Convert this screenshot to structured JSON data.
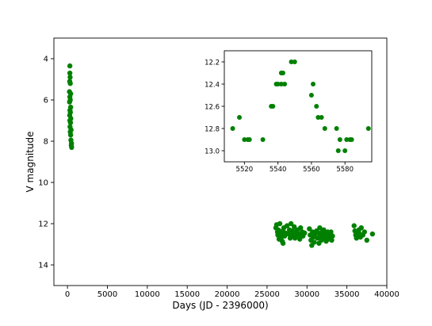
{
  "chart_data": [
    {
      "type": "scatter",
      "name": "main",
      "xlabel": "Days (JD - 2396000)",
      "ylabel": "V magnitude",
      "xlim": [
        -1700,
        40000
      ],
      "ylim": [
        15,
        3
      ],
      "y_inverted": true,
      "xticks": [
        0,
        5000,
        10000,
        15000,
        20000,
        25000,
        30000,
        35000,
        40000
      ],
      "yticks": [
        4,
        6,
        8,
        10,
        12,
        14
      ],
      "color": "#008000",
      "points": [
        [
          300,
          4.35
        ],
        [
          300,
          4.7
        ],
        [
          330,
          4.9
        ],
        [
          280,
          5.1
        ],
        [
          350,
          5.2
        ],
        [
          250,
          5.6
        ],
        [
          400,
          5.7
        ],
        [
          300,
          5.85
        ],
        [
          350,
          6.0
        ],
        [
          260,
          6.1
        ],
        [
          400,
          6.35
        ],
        [
          310,
          6.5
        ],
        [
          360,
          6.6
        ],
        [
          280,
          6.75
        ],
        [
          420,
          6.9
        ],
        [
          300,
          7.0
        ],
        [
          380,
          7.1
        ],
        [
          320,
          7.3
        ],
        [
          450,
          7.45
        ],
        [
          350,
          7.55
        ],
        [
          400,
          7.7
        ],
        [
          430,
          7.95
        ],
        [
          500,
          8.1
        ],
        [
          480,
          8.2
        ],
        [
          520,
          8.3
        ],
        [
          26100,
          12.2
        ],
        [
          26200,
          12.05
        ],
        [
          26300,
          12.4
        ],
        [
          26350,
          12.55
        ],
        [
          26400,
          12.3
        ],
        [
          26500,
          12.75
        ],
        [
          26600,
          12.0
        ],
        [
          26700,
          12.5
        ],
        [
          26800,
          12.65
        ],
        [
          26900,
          12.85
        ],
        [
          27000,
          12.95
        ],
        [
          26950,
          12.35
        ],
        [
          27100,
          12.2
        ],
        [
          27200,
          12.6
        ],
        [
          27300,
          12.45
        ],
        [
          27500,
          12.1
        ],
        [
          27700,
          12.5
        ],
        [
          27800,
          12.3
        ],
        [
          27900,
          12.7
        ],
        [
          28000,
          12.0
        ],
        [
          28100,
          12.55
        ],
        [
          28200,
          12.35
        ],
        [
          28300,
          12.6
        ],
        [
          28400,
          12.15
        ],
        [
          28500,
          12.7
        ],
        [
          28600,
          12.45
        ],
        [
          28800,
          12.3
        ],
        [
          28900,
          12.6
        ],
        [
          29000,
          12.5
        ],
        [
          29100,
          12.75
        ],
        [
          29200,
          12.2
        ],
        [
          29400,
          12.4
        ],
        [
          29500,
          12.6
        ],
        [
          29700,
          12.45
        ],
        [
          30300,
          12.25
        ],
        [
          30400,
          12.55
        ],
        [
          30500,
          12.8
        ],
        [
          30600,
          13.05
        ],
        [
          30700,
          12.4
        ],
        [
          30800,
          12.65
        ],
        [
          30900,
          12.9
        ],
        [
          31000,
          12.5
        ],
        [
          31200,
          12.35
        ],
        [
          31300,
          12.7
        ],
        [
          31400,
          12.45
        ],
        [
          31500,
          12.95
        ],
        [
          31600,
          12.2
        ],
        [
          31700,
          12.6
        ],
        [
          31800,
          12.8
        ],
        [
          31900,
          12.4
        ],
        [
          32000,
          12.55
        ],
        [
          32100,
          12.3
        ],
        [
          32200,
          12.7
        ],
        [
          32300,
          12.5
        ],
        [
          32400,
          12.85
        ],
        [
          32500,
          12.6
        ],
        [
          32600,
          12.4
        ],
        [
          32700,
          12.75
        ],
        [
          32800,
          12.55
        ],
        [
          32900,
          12.65
        ],
        [
          33000,
          12.4
        ],
        [
          33100,
          12.8
        ],
        [
          33200,
          12.6
        ],
        [
          35900,
          12.1
        ],
        [
          36000,
          12.35
        ],
        [
          36100,
          12.55
        ],
        [
          36200,
          12.7
        ],
        [
          36300,
          12.45
        ],
        [
          36400,
          12.6
        ],
        [
          36500,
          12.3
        ],
        [
          36600,
          12.5
        ],
        [
          36700,
          12.65
        ],
        [
          36800,
          12.2
        ],
        [
          37000,
          12.55
        ],
        [
          37200,
          12.4
        ],
        [
          37500,
          12.8
        ],
        [
          38200,
          12.5
        ]
      ]
    },
    {
      "type": "scatter",
      "name": "inset",
      "xlim": [
        5508,
        5596
      ],
      "ylim": [
        13.1,
        12.1
      ],
      "y_inverted": true,
      "xticks": [
        5520,
        5540,
        5560,
        5580
      ],
      "yticks": [
        12.2,
        12.4,
        12.6,
        12.8,
        13.0
      ],
      "ytick_labels": [
        "12.2",
        "12.4",
        "12.6",
        "12.8",
        "13.0"
      ],
      "color": "#008000",
      "points": [
        [
          5513,
          12.8
        ],
        [
          5517,
          12.7
        ],
        [
          5520,
          12.9
        ],
        [
          5522,
          12.9
        ],
        [
          5523,
          12.9
        ],
        [
          5531,
          12.9
        ],
        [
          5536,
          12.6
        ],
        [
          5537,
          12.6
        ],
        [
          5539,
          12.4
        ],
        [
          5540,
          12.4
        ],
        [
          5542,
          12.3
        ],
        [
          5542,
          12.4
        ],
        [
          5543,
          12.3
        ],
        [
          5544,
          12.4
        ],
        [
          5548,
          12.2
        ],
        [
          5550,
          12.2
        ],
        [
          5560,
          12.5
        ],
        [
          5561,
          12.4
        ],
        [
          5563,
          12.6
        ],
        [
          5564,
          12.7
        ],
        [
          5566,
          12.7
        ],
        [
          5568,
          12.8
        ],
        [
          5575,
          12.8
        ],
        [
          5576,
          13.0
        ],
        [
          5577,
          12.9
        ],
        [
          5580,
          13.0
        ],
        [
          5581,
          12.9
        ],
        [
          5583,
          12.9
        ],
        [
          5584,
          12.9
        ],
        [
          5594,
          12.8
        ]
      ]
    }
  ]
}
